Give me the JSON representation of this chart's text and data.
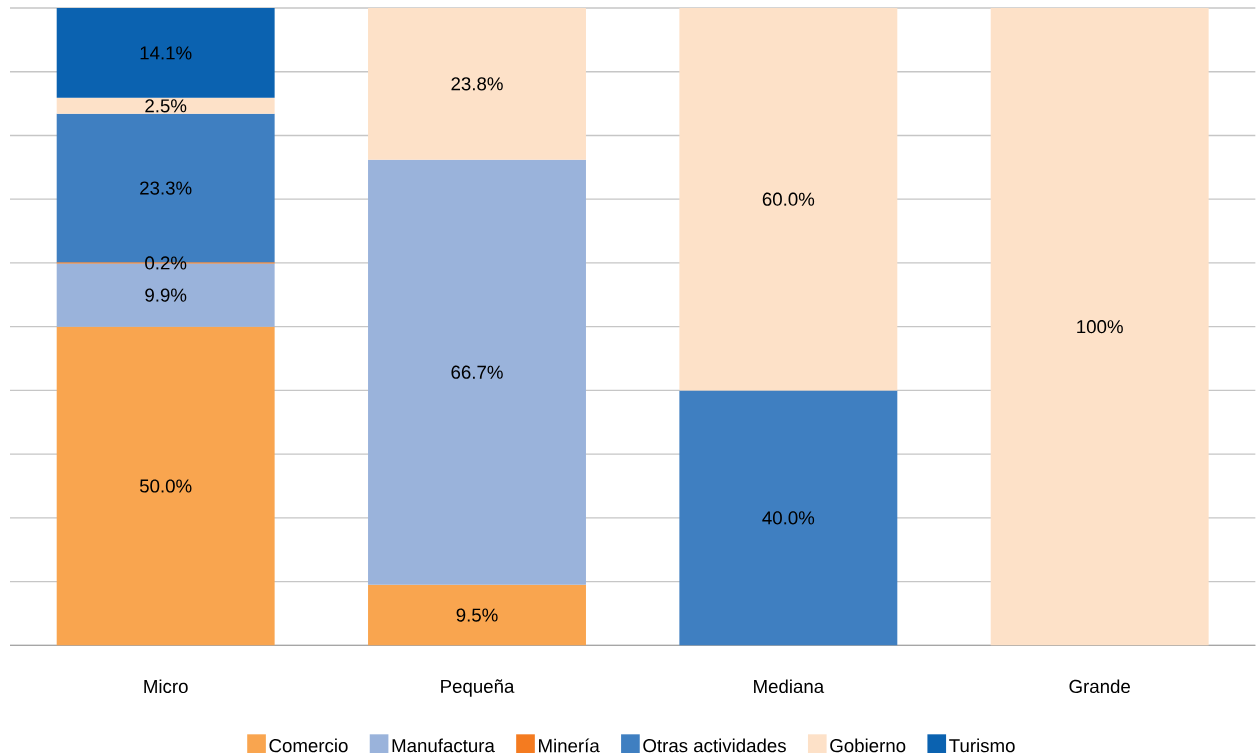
{
  "chart_data": {
    "type": "bar",
    "stacked": true,
    "categories": [
      "Micro",
      "Pequeña",
      "Mediana",
      "Grande"
    ],
    "ylim": [
      0,
      100
    ],
    "yticks": [
      {
        "value": 0,
        "label": null
      },
      {
        "value": 10,
        "label": null
      },
      {
        "value": 20,
        "label": null
      },
      {
        "value": 30,
        "label": null
      },
      {
        "value": 40,
        "label": null
      },
      {
        "value": 50,
        "label": null
      },
      {
        "value": 60,
        "label": null
      },
      {
        "value": 70,
        "label": null
      },
      {
        "value": 80,
        "label": null
      },
      {
        "value": 90,
        "label": null
      },
      {
        "value": 100,
        "label": null
      }
    ],
    "tick_labels": "x",
    "grid": "y",
    "legend": "bottom",
    "series": [
      {
        "name": "Comercio",
        "color": "#f9a54f",
        "values": [
          50.0,
          9.5,
          null,
          null
        ],
        "value_labels": [
          "50.0%",
          "9.5%",
          null,
          null
        ]
      },
      {
        "name": "Manufactura",
        "color": "#9ab3db",
        "values": [
          9.9,
          66.7,
          null,
          null
        ],
        "value_labels": [
          "9.9%",
          "66.7%",
          null,
          null
        ]
      },
      {
        "name": "Minería",
        "color": "#f47b20",
        "values": [
          0.2,
          null,
          null,
          null
        ],
        "value_labels": [
          "0.2%",
          null,
          null,
          null
        ]
      },
      {
        "name": "Otras actividades",
        "color": "#3f7fc1",
        "values": [
          23.3,
          null,
          40.0,
          null
        ],
        "value_labels": [
          "23.3%",
          null,
          "40.0%",
          null
        ]
      },
      {
        "name": "Gobierno",
        "color": "#fde1c8",
        "values": [
          2.5,
          23.8,
          60.0,
          100
        ],
        "value_labels": [
          "2.5%",
          "23.8%",
          "60.0%",
          "100%"
        ]
      },
      {
        "name": "Turismo",
        "color": "#0b62b0",
        "values": [
          14.1,
          null,
          null,
          null
        ],
        "value_labels": [
          "14.1%",
          null,
          null,
          null
        ]
      }
    ]
  }
}
